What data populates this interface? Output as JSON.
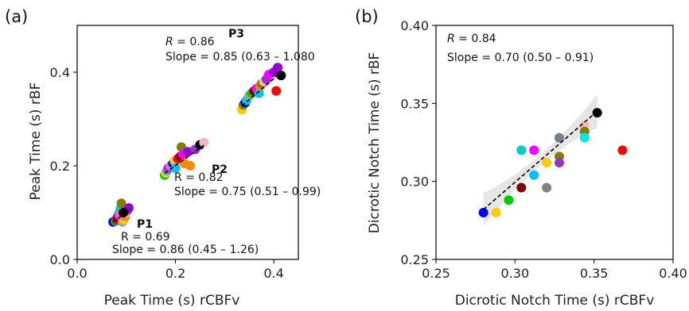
{
  "chart_data": [
    {
      "panel_label": "(a)",
      "type": "scatter",
      "xlabel": "Peak Time (s) rCBFv",
      "ylabel": "Peak Time (s) rBF",
      "xlim": [
        0.0,
        0.45
      ],
      "ylim": [
        0.0,
        0.5
      ],
      "xticks": [
        "0.0",
        "0.2",
        "0.4"
      ],
      "yticks": [
        "0.0",
        "0.2",
        "0.4"
      ],
      "grid": false,
      "groups": [
        {
          "name": "P1",
          "r_text": "R = 0.69",
          "slope_text": "Slope = 0.86 (0.45 – 1.26)",
          "fit": {
            "x": [
              0.073,
              0.105
            ],
            "y": [
              0.079,
              0.106
            ]
          },
          "points": [
            {
              "x": 0.073,
              "y": 0.08,
              "color": "#0000ff"
            },
            {
              "x": 0.078,
              "y": 0.082,
              "color": "#00cc00"
            },
            {
              "x": 0.08,
              "y": 0.085,
              "color": "#ff0000"
            },
            {
              "x": 0.082,
              "y": 0.09,
              "color": "#800000"
            },
            {
              "x": 0.084,
              "y": 0.095,
              "color": "#ff00ff"
            },
            {
              "x": 0.086,
              "y": 0.1,
              "color": "#00bfff"
            },
            {
              "x": 0.088,
              "y": 0.108,
              "color": "#00cccc"
            },
            {
              "x": 0.09,
              "y": 0.12,
              "color": "#808000"
            },
            {
              "x": 0.092,
              "y": 0.08,
              "color": "#a0a0a0"
            },
            {
              "x": 0.095,
              "y": 0.085,
              "color": "#ffcc00"
            },
            {
              "x": 0.098,
              "y": 0.092,
              "color": "#ff8c00"
            },
            {
              "x": 0.1,
              "y": 0.1,
              "color": "#ffb6c1"
            },
            {
              "x": 0.102,
              "y": 0.105,
              "color": "#9932cc"
            },
            {
              "x": 0.105,
              "y": 0.11,
              "color": "#9400d3"
            },
            {
              "x": 0.088,
              "y": 0.095,
              "color": "#ff69b4"
            },
            {
              "x": 0.094,
              "y": 0.1,
              "color": "#000000"
            }
          ]
        },
        {
          "name": "P2",
          "r_text": "R = 0.82",
          "slope_text": "Slope = 0.75 (0.51 – 0.99)",
          "fit": {
            "x": [
              0.178,
              0.258
            ],
            "y": [
              0.184,
              0.244
            ]
          },
          "points": [
            {
              "x": 0.178,
              "y": 0.18,
              "color": "#00cc00"
            },
            {
              "x": 0.18,
              "y": 0.185,
              "color": "#ffcc00"
            },
            {
              "x": 0.183,
              "y": 0.19,
              "color": "#00cccc"
            },
            {
              "x": 0.185,
              "y": 0.195,
              "color": "#ff00ff"
            },
            {
              "x": 0.19,
              "y": 0.2,
              "color": "#a0a0a0"
            },
            {
              "x": 0.195,
              "y": 0.205,
              "color": "#0000ff"
            },
            {
              "x": 0.198,
              "y": 0.21,
              "color": "#ffcc00"
            },
            {
              "x": 0.2,
              "y": 0.195,
              "color": "#00bfff"
            },
            {
              "x": 0.205,
              "y": 0.215,
              "color": "#ff0000"
            },
            {
              "x": 0.21,
              "y": 0.22,
              "color": "#800000"
            },
            {
              "x": 0.212,
              "y": 0.24,
              "color": "#808000"
            },
            {
              "x": 0.215,
              "y": 0.225,
              "color": "#ff00ff"
            },
            {
              "x": 0.218,
              "y": 0.205,
              "color": "#ff8c00"
            },
            {
              "x": 0.225,
              "y": 0.23,
              "color": "#9400d3"
            },
            {
              "x": 0.23,
              "y": 0.2,
              "color": "#ff8c00"
            },
            {
              "x": 0.24,
              "y": 0.235,
              "color": "#9932cc"
            },
            {
              "x": 0.25,
              "y": 0.245,
              "color": "#000000"
            },
            {
              "x": 0.258,
              "y": 0.25,
              "color": "#ffb6c1"
            }
          ]
        },
        {
          "name": "P3",
          "r_text": "R = 0.86",
          "slope_text": "Slope = 0.85 (0.63 – 1.080",
          "fit": {
            "x": [
              0.335,
              0.412
            ],
            "y": [
              0.328,
              0.397
            ]
          },
          "points": [
            {
              "x": 0.335,
              "y": 0.32,
              "color": "#ffcc00"
            },
            {
              "x": 0.338,
              "y": 0.33,
              "color": "#808000"
            },
            {
              "x": 0.342,
              "y": 0.335,
              "color": "#0000ff"
            },
            {
              "x": 0.345,
              "y": 0.34,
              "color": "#00cccc"
            },
            {
              "x": 0.35,
              "y": 0.35,
              "color": "#a0a0a0"
            },
            {
              "x": 0.355,
              "y": 0.355,
              "color": "#00cc00"
            },
            {
              "x": 0.36,
              "y": 0.36,
              "color": "#800000"
            },
            {
              "x": 0.365,
              "y": 0.365,
              "color": "#ff00ff"
            },
            {
              "x": 0.37,
              "y": 0.355,
              "color": "#00bfff"
            },
            {
              "x": 0.372,
              "y": 0.37,
              "color": "#ff8c00"
            },
            {
              "x": 0.375,
              "y": 0.375,
              "color": "#808000"
            },
            {
              "x": 0.38,
              "y": 0.38,
              "color": "#ffb6c1"
            },
            {
              "x": 0.385,
              "y": 0.385,
              "color": "#9932cc"
            },
            {
              "x": 0.39,
              "y": 0.395,
              "color": "#ff00ff"
            },
            {
              "x": 0.4,
              "y": 0.4,
              "color": "#9400d3"
            },
            {
              "x": 0.405,
              "y": 0.36,
              "color": "#ff0000"
            },
            {
              "x": 0.408,
              "y": 0.41,
              "color": "#9400d3"
            },
            {
              "x": 0.415,
              "y": 0.393,
              "color": "#000000"
            }
          ]
        }
      ]
    },
    {
      "panel_label": "(b)",
      "type": "scatter",
      "xlabel": "Dicrotic Notch Time (s) rCBFv",
      "ylabel": "Dicrotic Notch Time (s) rBF",
      "xlim": [
        0.25,
        0.4
      ],
      "ylim": [
        0.25,
        0.4
      ],
      "xticks": [
        "0.25",
        "0.30",
        "0.35",
        "0.40"
      ],
      "yticks": [
        "0.25",
        "0.30",
        "0.35",
        "0.40"
      ],
      "grid": false,
      "annotation": {
        "r_text": "R = 0.84",
        "slope_text": "Slope = 0.70 (0.50 – 0.91)"
      },
      "fit": {
        "x": [
          0.28,
          0.352
        ],
        "y": [
          0.282,
          0.345
        ]
      },
      "points": [
        {
          "x": 0.28,
          "y": 0.28,
          "color": "#0000ff"
        },
        {
          "x": 0.288,
          "y": 0.28,
          "color": "#ffcc00"
        },
        {
          "x": 0.296,
          "y": 0.288,
          "color": "#00cc00"
        },
        {
          "x": 0.304,
          "y": 0.296,
          "color": "#800000"
        },
        {
          "x": 0.304,
          "y": 0.32,
          "color": "#00cccc"
        },
        {
          "x": 0.312,
          "y": 0.32,
          "color": "#ff00ff"
        },
        {
          "x": 0.312,
          "y": 0.304,
          "color": "#00bfff"
        },
        {
          "x": 0.32,
          "y": 0.312,
          "color": "#ffcc00"
        },
        {
          "x": 0.32,
          "y": 0.296,
          "color": "#808080"
        },
        {
          "x": 0.328,
          "y": 0.328,
          "color": "#708090"
        },
        {
          "x": 0.328,
          "y": 0.316,
          "color": "#808000"
        },
        {
          "x": 0.328,
          "y": 0.312,
          "color": "#9932cc"
        },
        {
          "x": 0.344,
          "y": 0.336,
          "color": "#ffb6c1"
        },
        {
          "x": 0.344,
          "y": 0.332,
          "color": "#808000"
        },
        {
          "x": 0.344,
          "y": 0.328,
          "color": "#00e5ee"
        },
        {
          "x": 0.352,
          "y": 0.344,
          "color": "#000000"
        },
        {
          "x": 0.368,
          "y": 0.32,
          "color": "#ff0000"
        }
      ]
    }
  ]
}
